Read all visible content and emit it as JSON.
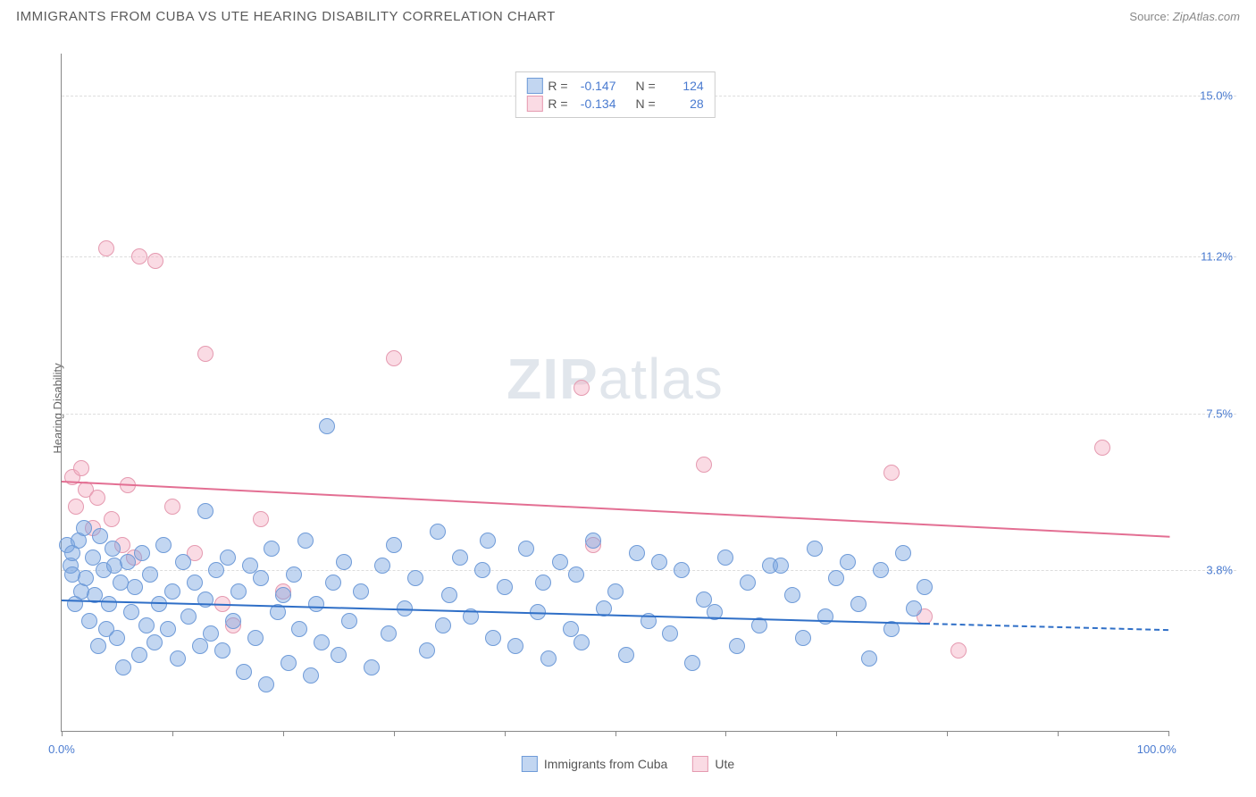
{
  "header": {
    "title": "IMMIGRANTS FROM CUBA VS UTE HEARING DISABILITY CORRELATION CHART",
    "source_prefix": "Source:",
    "source_name": "ZipAtlas.com"
  },
  "watermark": {
    "zip": "ZIP",
    "atlas": "atlas"
  },
  "axes": {
    "ylabel": "Hearing Disability",
    "xmin": 0,
    "xmax": 100,
    "ymin": 0,
    "ymax": 16,
    "yticks": [
      {
        "v": 3.8,
        "label": "3.8%"
      },
      {
        "v": 7.5,
        "label": "7.5%"
      },
      {
        "v": 11.2,
        "label": "11.2%"
      },
      {
        "v": 15.0,
        "label": "15.0%"
      }
    ],
    "xticks": [
      0,
      10,
      20,
      30,
      40,
      50,
      60,
      70,
      80,
      90,
      100
    ],
    "xlabel_min": "0.0%",
    "xlabel_max": "100.0%",
    "grid_color": "#dddddd",
    "axis_color": "#888888",
    "tick_label_color": "#4a7bd0"
  },
  "series": {
    "a": {
      "name": "Immigrants from Cuba",
      "fill": "rgba(120,165,225,0.45)",
      "stroke": "#6f9bd8",
      "line_color": "#2f6fc7",
      "marker_r": 9,
      "r_value": "-0.147",
      "n_value": "124",
      "trend": {
        "x1": 0,
        "y1": 3.1,
        "x2_solid": 78,
        "y2_solid": 2.55,
        "x2": 100,
        "y2": 2.4
      },
      "points": [
        {
          "x": 0.5,
          "y": 4.4
        },
        {
          "x": 0.8,
          "y": 3.9
        },
        {
          "x": 1.0,
          "y": 4.2
        },
        {
          "x": 1.2,
          "y": 3.0
        },
        {
          "x": 1.5,
          "y": 4.5
        },
        {
          "x": 1.8,
          "y": 3.3
        },
        {
          "x": 2.0,
          "y": 4.8
        },
        {
          "x": 2.2,
          "y": 3.6
        },
        {
          "x": 2.5,
          "y": 2.6
        },
        {
          "x": 2.8,
          "y": 4.1
        },
        {
          "x": 3.0,
          "y": 3.2
        },
        {
          "x": 3.3,
          "y": 2.0
        },
        {
          "x": 3.5,
          "y": 4.6
        },
        {
          "x": 3.8,
          "y": 3.8
        },
        {
          "x": 4.0,
          "y": 2.4
        },
        {
          "x": 4.3,
          "y": 3.0
        },
        {
          "x": 4.6,
          "y": 4.3
        },
        {
          "x": 5.0,
          "y": 2.2
        },
        {
          "x": 5.3,
          "y": 3.5
        },
        {
          "x": 5.6,
          "y": 1.5
        },
        {
          "x": 6.0,
          "y": 4.0
        },
        {
          "x": 6.3,
          "y": 2.8
        },
        {
          "x": 6.6,
          "y": 3.4
        },
        {
          "x": 7.0,
          "y": 1.8
        },
        {
          "x": 7.3,
          "y": 4.2
        },
        {
          "x": 7.7,
          "y": 2.5
        },
        {
          "x": 8.0,
          "y": 3.7
        },
        {
          "x": 8.4,
          "y": 2.1
        },
        {
          "x": 8.8,
          "y": 3.0
        },
        {
          "x": 9.2,
          "y": 4.4
        },
        {
          "x": 9.6,
          "y": 2.4
        },
        {
          "x": 10.0,
          "y": 3.3
        },
        {
          "x": 10.5,
          "y": 1.7
        },
        {
          "x": 11.0,
          "y": 4.0
        },
        {
          "x": 11.5,
          "y": 2.7
        },
        {
          "x": 12.0,
          "y": 3.5
        },
        {
          "x": 12.5,
          "y": 2.0
        },
        {
          "x": 13.0,
          "y": 5.2
        },
        {
          "x": 13.0,
          "y": 3.1
        },
        {
          "x": 13.5,
          "y": 2.3
        },
        {
          "x": 14.0,
          "y": 3.8
        },
        {
          "x": 14.5,
          "y": 1.9
        },
        {
          "x": 15.0,
          "y": 4.1
        },
        {
          "x": 15.5,
          "y": 2.6
        },
        {
          "x": 16.0,
          "y": 3.3
        },
        {
          "x": 16.5,
          "y": 1.4
        },
        {
          "x": 17.0,
          "y": 3.9
        },
        {
          "x": 17.5,
          "y": 2.2
        },
        {
          "x": 18.0,
          "y": 3.6
        },
        {
          "x": 18.5,
          "y": 1.1
        },
        {
          "x": 19.0,
          "y": 4.3
        },
        {
          "x": 19.5,
          "y": 2.8
        },
        {
          "x": 20.0,
          "y": 3.2
        },
        {
          "x": 20.5,
          "y": 1.6
        },
        {
          "x": 21.0,
          "y": 3.7
        },
        {
          "x": 21.5,
          "y": 2.4
        },
        {
          "x": 22.0,
          "y": 4.5
        },
        {
          "x": 22.5,
          "y": 1.3
        },
        {
          "x": 23.0,
          "y": 3.0
        },
        {
          "x": 23.5,
          "y": 2.1
        },
        {
          "x": 24.0,
          "y": 7.2
        },
        {
          "x": 24.5,
          "y": 3.5
        },
        {
          "x": 25.0,
          "y": 1.8
        },
        {
          "x": 25.5,
          "y": 4.0
        },
        {
          "x": 26.0,
          "y": 2.6
        },
        {
          "x": 27.0,
          "y": 3.3
        },
        {
          "x": 28.0,
          "y": 1.5
        },
        {
          "x": 29.0,
          "y": 3.9
        },
        {
          "x": 29.5,
          "y": 2.3
        },
        {
          "x": 30.0,
          "y": 4.4
        },
        {
          "x": 31.0,
          "y": 2.9
        },
        {
          "x": 32.0,
          "y": 3.6
        },
        {
          "x": 33.0,
          "y": 1.9
        },
        {
          "x": 34.0,
          "y": 4.7
        },
        {
          "x": 34.5,
          "y": 2.5
        },
        {
          "x": 35.0,
          "y": 3.2
        },
        {
          "x": 36.0,
          "y": 4.1
        },
        {
          "x": 37.0,
          "y": 2.7
        },
        {
          "x": 38.0,
          "y": 3.8
        },
        {
          "x": 38.5,
          "y": 4.5
        },
        {
          "x": 39.0,
          "y": 2.2
        },
        {
          "x": 40.0,
          "y": 3.4
        },
        {
          "x": 41.0,
          "y": 2.0
        },
        {
          "x": 42.0,
          "y": 4.3
        },
        {
          "x": 43.0,
          "y": 2.8
        },
        {
          "x": 43.5,
          "y": 3.5
        },
        {
          "x": 44.0,
          "y": 1.7
        },
        {
          "x": 45.0,
          "y": 4.0
        },
        {
          "x": 46.0,
          "y": 2.4
        },
        {
          "x": 46.5,
          "y": 3.7
        },
        {
          "x": 47.0,
          "y": 2.1
        },
        {
          "x": 48.0,
          "y": 4.5
        },
        {
          "x": 49.0,
          "y": 2.9
        },
        {
          "x": 50.0,
          "y": 3.3
        },
        {
          "x": 51.0,
          "y": 1.8
        },
        {
          "x": 52.0,
          "y": 4.2
        },
        {
          "x": 53.0,
          "y": 2.6
        },
        {
          "x": 54.0,
          "y": 4.0
        },
        {
          "x": 55.0,
          "y": 2.3
        },
        {
          "x": 56.0,
          "y": 3.8
        },
        {
          "x": 57.0,
          "y": 1.6
        },
        {
          "x": 58.0,
          "y": 3.1
        },
        {
          "x": 59.0,
          "y": 2.8
        },
        {
          "x": 60.0,
          "y": 4.1
        },
        {
          "x": 61.0,
          "y": 2.0
        },
        {
          "x": 62.0,
          "y": 3.5
        },
        {
          "x": 63.0,
          "y": 2.5
        },
        {
          "x": 64.0,
          "y": 3.9
        },
        {
          "x": 65.0,
          "y": 3.9
        },
        {
          "x": 66.0,
          "y": 3.2
        },
        {
          "x": 67.0,
          "y": 2.2
        },
        {
          "x": 68.0,
          "y": 4.3
        },
        {
          "x": 69.0,
          "y": 2.7
        },
        {
          "x": 70.0,
          "y": 3.6
        },
        {
          "x": 71.0,
          "y": 4.0
        },
        {
          "x": 72.0,
          "y": 3.0
        },
        {
          "x": 73.0,
          "y": 1.7
        },
        {
          "x": 74.0,
          "y": 3.8
        },
        {
          "x": 75.0,
          "y": 2.4
        },
        {
          "x": 76.0,
          "y": 4.2
        },
        {
          "x": 77.0,
          "y": 2.9
        },
        {
          "x": 78.0,
          "y": 3.4
        },
        {
          "x": 1.0,
          "y": 3.7
        },
        {
          "x": 4.8,
          "y": 3.9
        }
      ]
    },
    "b": {
      "name": "Ute",
      "fill": "rgba(245,175,195,0.45)",
      "stroke": "#e59ab0",
      "line_color": "#e36f93",
      "marker_r": 9,
      "r_value": "-0.134",
      "n_value": "28",
      "trend": {
        "x1": 0,
        "y1": 5.9,
        "x2_solid": 100,
        "y2_solid": 4.6,
        "x2": 100,
        "y2": 4.6
      },
      "points": [
        {
          "x": 1.0,
          "y": 6.0
        },
        {
          "x": 1.3,
          "y": 5.3
        },
        {
          "x": 1.8,
          "y": 6.2
        },
        {
          "x": 2.2,
          "y": 5.7
        },
        {
          "x": 2.8,
          "y": 4.8
        },
        {
          "x": 3.2,
          "y": 5.5
        },
        {
          "x": 4.0,
          "y": 11.4
        },
        {
          "x": 4.5,
          "y": 5.0
        },
        {
          "x": 5.5,
          "y": 4.4
        },
        {
          "x": 6.0,
          "y": 5.8
        },
        {
          "x": 7.0,
          "y": 11.2
        },
        {
          "x": 8.5,
          "y": 11.1
        },
        {
          "x": 10.0,
          "y": 5.3
        },
        {
          "x": 12.0,
          "y": 4.2
        },
        {
          "x": 13.0,
          "y": 8.9
        },
        {
          "x": 14.5,
          "y": 3.0
        },
        {
          "x": 15.5,
          "y": 2.5
        },
        {
          "x": 18.0,
          "y": 5.0
        },
        {
          "x": 20.0,
          "y": 3.3
        },
        {
          "x": 30.0,
          "y": 8.8
        },
        {
          "x": 47.0,
          "y": 8.1
        },
        {
          "x": 48.0,
          "y": 4.4
        },
        {
          "x": 58.0,
          "y": 6.3
        },
        {
          "x": 75.0,
          "y": 6.1
        },
        {
          "x": 78.0,
          "y": 2.7
        },
        {
          "x": 81.0,
          "y": 1.9
        },
        {
          "x": 94.0,
          "y": 6.7
        },
        {
          "x": 6.5,
          "y": 4.1
        }
      ]
    }
  },
  "legend_labels": {
    "R": "R =",
    "N": "N ="
  }
}
